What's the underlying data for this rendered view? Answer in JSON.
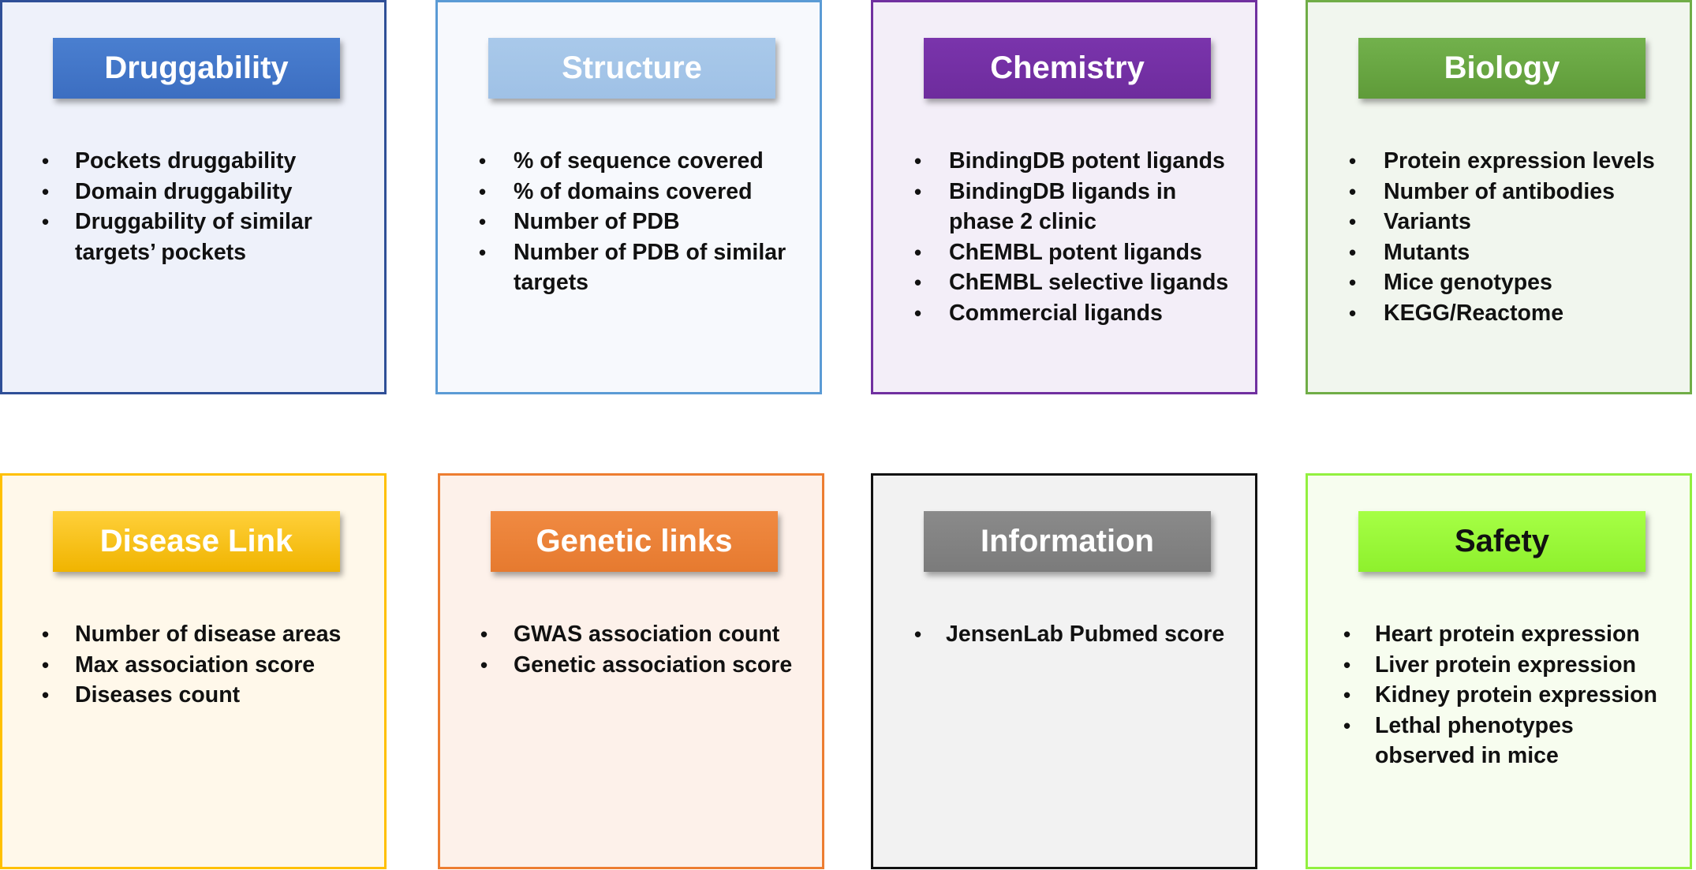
{
  "cards": [
    {
      "title": "Druggability",
      "items": [
        "Pockets druggability",
        "Domain druggability",
        "Druggability of similar targets’ pockets"
      ]
    },
    {
      "title": "Structure",
      "items": [
        "% of sequence covered",
        "% of domains covered",
        "Number of PDB",
        "Number of PDB of similar targets"
      ]
    },
    {
      "title": "Chemistry",
      "items": [
        "BindingDB potent ligands",
        "BindingDB ligands in phase 2 clinic",
        "ChEMBL potent ligands",
        "ChEMBL selective ligands",
        "Commercial ligands"
      ]
    },
    {
      "title": "Biology",
      "items": [
        "Protein expression levels",
        "Number of antibodies",
        "Variants",
        "Mutants",
        "Mice genotypes",
        "KEGG/Reactome"
      ]
    },
    {
      "title": "Disease Link",
      "items": [
        "Number of disease areas",
        "Max association score",
        "Diseases count"
      ]
    },
    {
      "title": "Genetic links",
      "items": [
        "GWAS association count",
        "Genetic association score"
      ]
    },
    {
      "title": "Information",
      "items": [
        "JensenLab Pubmed score"
      ]
    },
    {
      "title": "Safety",
      "items": [
        "Heart protein expression",
        "Liver protein expression",
        "Kidney protein expression",
        "Lethal phenotypes observed in mice"
      ]
    }
  ],
  "colors": {
    "druggability": "#4472c4",
    "structure": "#9dc3e6",
    "chemistry": "#7030a0",
    "biology": "#70ad47",
    "disease_link": "#ffc000",
    "genetic_links": "#ed7d31",
    "information": "#808080",
    "safety": "#92f03f"
  },
  "bullet_symbol": "•"
}
